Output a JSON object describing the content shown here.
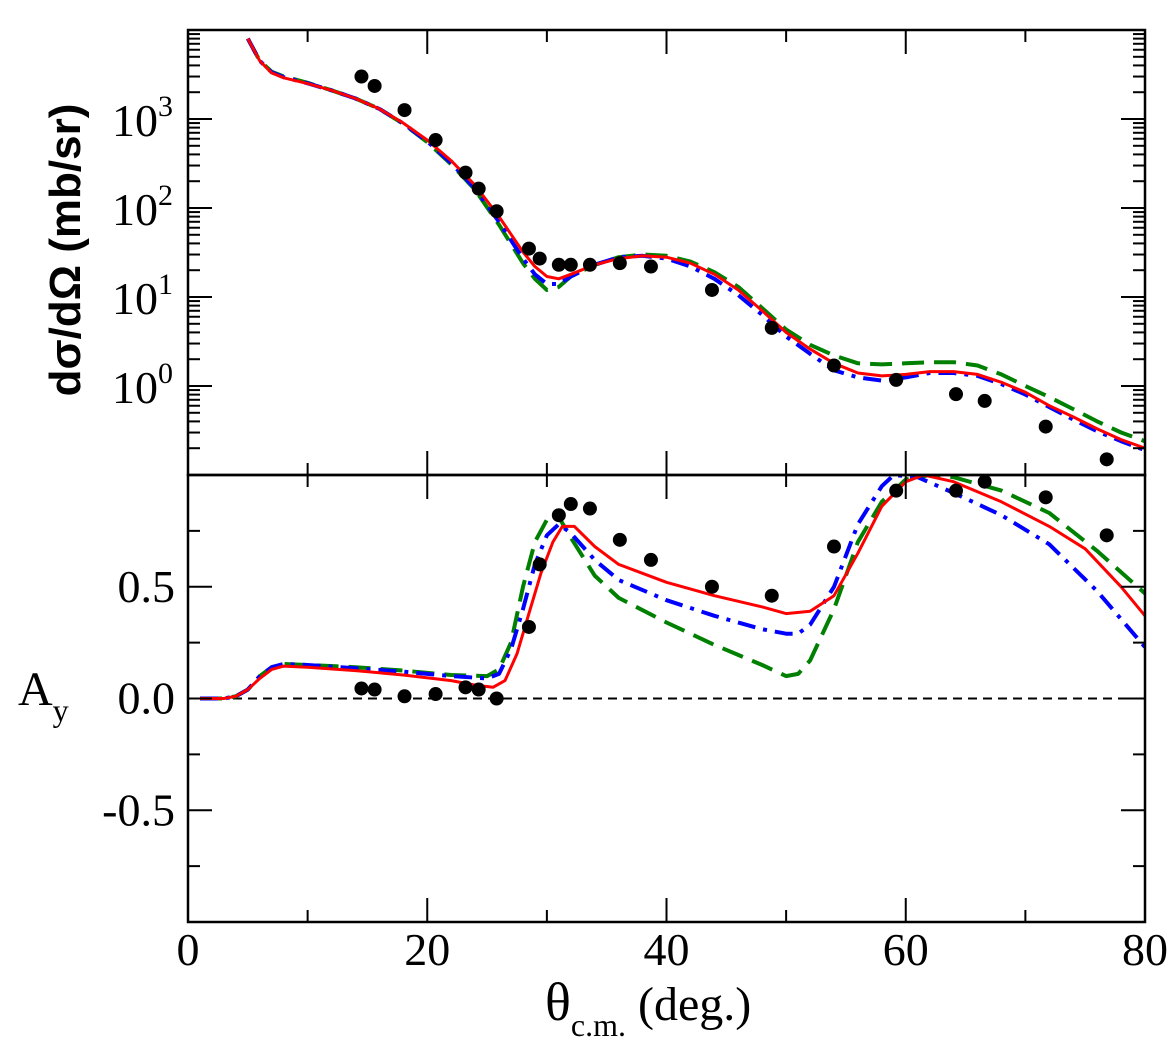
{
  "chart_data": [
    {
      "type": "line",
      "panel": "top",
      "ylabel": "dσ/dΩ (mb/sr)",
      "yscale": "log",
      "ylim": [
        0.1,
        10000
      ],
      "xlim": [
        0,
        80
      ],
      "ytick_labels": [
        {
          "base": "10",
          "exp": "3",
          "value": 1000
        },
        {
          "base": "10",
          "exp": "2",
          "value": 100
        },
        {
          "base": "10",
          "exp": "1",
          "value": 10
        },
        {
          "base": "10",
          "exp": "0",
          "value": 1
        }
      ],
      "data_points": {
        "x": [
          14.5,
          15.6,
          18.1,
          20.7,
          23.2,
          24.3,
          25.8,
          28.5,
          29.4,
          31.0,
          32.0,
          33.6,
          36.1,
          38.7,
          43.8,
          48.8,
          54.0,
          59.2,
          64.2,
          66.6,
          71.7,
          76.8
        ],
        "y": [
          3000,
          2350,
          1260,
          580,
          250,
          165,
          92,
          35,
          27,
          23,
          23,
          23,
          24,
          22,
          12,
          4.5,
          1.7,
          1.17,
          0.81,
          0.68,
          0.35,
          0.15
        ]
      },
      "series": [
        {
          "name": "solid",
          "color": "#ff0000",
          "dash": "solid",
          "x": [
            5,
            6,
            7,
            8,
            10,
            12,
            14,
            16,
            18,
            20,
            22,
            24,
            26,
            28,
            29,
            30,
            31,
            32,
            34,
            36,
            38,
            40,
            42,
            44,
            46,
            48,
            50,
            52,
            54,
            56,
            58,
            60,
            62,
            64,
            66,
            68,
            70,
            72,
            74,
            76,
            78,
            80
          ],
          "y": [
            8000,
            4500,
            3300,
            2900,
            2500,
            2100,
            1700,
            1300,
            900,
            580,
            340,
            180,
            80,
            32,
            22,
            17,
            16,
            18,
            23,
            27,
            29,
            28,
            24,
            18,
            12,
            7,
            4,
            2.6,
            1.8,
            1.4,
            1.3,
            1.35,
            1.45,
            1.45,
            1.35,
            1.1,
            0.85,
            0.6,
            0.45,
            0.33,
            0.25,
            0.2
          ]
        },
        {
          "name": "dashed",
          "color": "#008000",
          "dash": "dash",
          "x": [
            5,
            6,
            7,
            8,
            10,
            12,
            14,
            16,
            18,
            20,
            22,
            24,
            26,
            28,
            29,
            30,
            31,
            32,
            34,
            36,
            38,
            40,
            42,
            44,
            46,
            48,
            50,
            52,
            54,
            56,
            58,
            60,
            62,
            64,
            66,
            68,
            70,
            72,
            74,
            76,
            78,
            80
          ],
          "y": [
            8000,
            4500,
            3400,
            3000,
            2550,
            2100,
            1700,
            1300,
            880,
            550,
            310,
            160,
            65,
            24,
            16,
            12,
            13,
            17,
            23,
            28,
            30,
            29,
            25,
            19,
            13,
            7.5,
            4.3,
            2.9,
            2.2,
            1.8,
            1.75,
            1.8,
            1.85,
            1.85,
            1.7,
            1.35,
            1.0,
            0.75,
            0.55,
            0.4,
            0.3,
            0.24
          ]
        },
        {
          "name": "dash-dot",
          "color": "#0000ff",
          "dash": "dashdot",
          "x": [
            5,
            6,
            7,
            8,
            10,
            12,
            14,
            16,
            18,
            20,
            22,
            24,
            26,
            28,
            29,
            30,
            31,
            32,
            34,
            36,
            38,
            40,
            42,
            44,
            46,
            48,
            50,
            52,
            54,
            56,
            58,
            60,
            62,
            64,
            66,
            68,
            70,
            72,
            74,
            76,
            78,
            80
          ],
          "y": [
            8000,
            4500,
            3350,
            2950,
            2520,
            2100,
            1700,
            1300,
            890,
            560,
            320,
            165,
            70,
            27,
            18,
            14,
            14,
            17,
            23,
            28,
            29,
            27,
            22,
            16,
            10.5,
            6.3,
            3.6,
            2.3,
            1.5,
            1.25,
            1.15,
            1.25,
            1.4,
            1.4,
            1.3,
            1.05,
            0.8,
            0.58,
            0.42,
            0.31,
            0.24,
            0.19
          ]
        }
      ]
    },
    {
      "type": "line",
      "panel": "bottom",
      "ylabel": {
        "main": "A",
        "sub": "y"
      },
      "ylim": [
        -1,
        1
      ],
      "xlim": [
        0,
        80
      ],
      "xlabel": {
        "main": "θ",
        "sub": "c.m.",
        "rest": " (deg.)"
      },
      "xtick_labels": [
        "0",
        "20",
        "40",
        "60",
        "80"
      ],
      "ytick_labels": [
        "0.5",
        "0.0",
        "-0.5"
      ],
      "reference_line": {
        "y": 0,
        "style": "dashed",
        "color": "#000000"
      },
      "data_points": {
        "x": [
          14.5,
          15.6,
          18.1,
          20.7,
          23.2,
          24.3,
          25.8,
          28.5,
          29.4,
          31.0,
          32.0,
          33.6,
          36.1,
          38.7,
          43.8,
          48.8,
          54.0,
          59.2,
          64.2,
          66.6,
          71.7,
          76.8
        ],
        "y": [
          0.045,
          0.04,
          0.01,
          0.02,
          0.05,
          0.04,
          0.0,
          0.32,
          0.6,
          0.82,
          0.87,
          0.85,
          0.71,
          0.62,
          0.5,
          0.46,
          0.68,
          0.93,
          0.93,
          0.97,
          0.9,
          0.73
        ]
      },
      "series": [
        {
          "name": "solid",
          "color": "#ff0000",
          "dash": "solid",
          "x": [
            1,
            3,
            4,
            5,
            6,
            7,
            8,
            10,
            14,
            18,
            22,
            24,
            25.5,
            26.5,
            27.5,
            28.5,
            29.5,
            30.5,
            31.3,
            32.3,
            34,
            36,
            40,
            44,
            48,
            50,
            52,
            54,
            56,
            58,
            60,
            61.5,
            64,
            68,
            72,
            75,
            78,
            80
          ],
          "y": [
            0,
            0,
            0.01,
            0.04,
            0.09,
            0.13,
            0.145,
            0.14,
            0.125,
            0.105,
            0.08,
            0.06,
            0.05,
            0.08,
            0.2,
            0.38,
            0.56,
            0.7,
            0.77,
            0.77,
            0.68,
            0.6,
            0.52,
            0.46,
            0.41,
            0.38,
            0.39,
            0.46,
            0.65,
            0.86,
            0.97,
            1.0,
            0.97,
            0.88,
            0.77,
            0.67,
            0.5,
            0.37
          ]
        },
        {
          "name": "dashed",
          "color": "#008000",
          "dash": "dash",
          "x": [
            1,
            3,
            4,
            5,
            6,
            7,
            8,
            10,
            14,
            18,
            22,
            25,
            26,
            27,
            28,
            29,
            30,
            30.8,
            32,
            34,
            36,
            40,
            44,
            48,
            50,
            51,
            52,
            54,
            56,
            58,
            60,
            62,
            64,
            68,
            72,
            76,
            80
          ],
          "y": [
            0,
            0,
            0.01,
            0.04,
            0.1,
            0.14,
            0.155,
            0.15,
            0.14,
            0.125,
            0.105,
            0.1,
            0.13,
            0.25,
            0.5,
            0.7,
            0.8,
            0.83,
            0.72,
            0.55,
            0.45,
            0.34,
            0.24,
            0.15,
            0.1,
            0.11,
            0.17,
            0.4,
            0.7,
            0.88,
            0.98,
            1.0,
            0.99,
            0.93,
            0.83,
            0.66,
            0.47
          ]
        },
        {
          "name": "dash-dot",
          "color": "#0000ff",
          "dash": "dashdot",
          "x": [
            1,
            3,
            4,
            5,
            6,
            7,
            8,
            10,
            14,
            18,
            22,
            25,
            26,
            27,
            28,
            29,
            30,
            31,
            32,
            34,
            36,
            40,
            44,
            48,
            50,
            51,
            52,
            54,
            56,
            58,
            59,
            61,
            64,
            68,
            72,
            76,
            80
          ],
          "y": [
            0,
            0,
            0.01,
            0.04,
            0.1,
            0.14,
            0.155,
            0.15,
            0.135,
            0.12,
            0.1,
            0.09,
            0.11,
            0.22,
            0.4,
            0.6,
            0.73,
            0.78,
            0.74,
            0.62,
            0.53,
            0.44,
            0.37,
            0.31,
            0.29,
            0.29,
            0.33,
            0.5,
            0.78,
            0.95,
            1.0,
            0.99,
            0.92,
            0.82,
            0.69,
            0.48,
            0.23
          ]
        }
      ]
    }
  ]
}
